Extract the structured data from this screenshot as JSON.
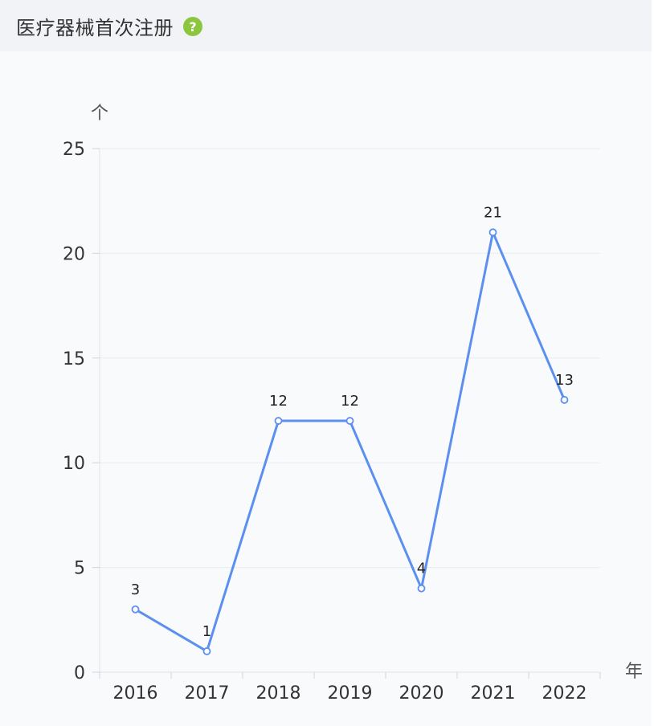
{
  "header": {
    "title": "医疗器械首次注册",
    "help_icon": "question-circle-icon",
    "help_symbol": "?"
  },
  "colors": {
    "line": "#5b8ff0",
    "help_icon": "#8cc63f",
    "grid": "#e9ecef"
  },
  "chart_data": {
    "type": "line",
    "title": "医疗器械首次注册",
    "x": [
      "2016",
      "2017",
      "2018",
      "2019",
      "2020",
      "2021",
      "2022"
    ],
    "y_unit": "个",
    "x_unit": "年",
    "ylim": [
      0,
      25
    ],
    "yticks": [
      "0",
      "5",
      "10",
      "15",
      "20",
      "25"
    ],
    "grid": true,
    "series": [
      {
        "values": [
          3,
          1,
          12,
          12,
          4,
          21,
          13
        ]
      }
    ],
    "data_labels": [
      "3",
      "1",
      "12",
      "12",
      "4",
      "21",
      "13"
    ]
  }
}
